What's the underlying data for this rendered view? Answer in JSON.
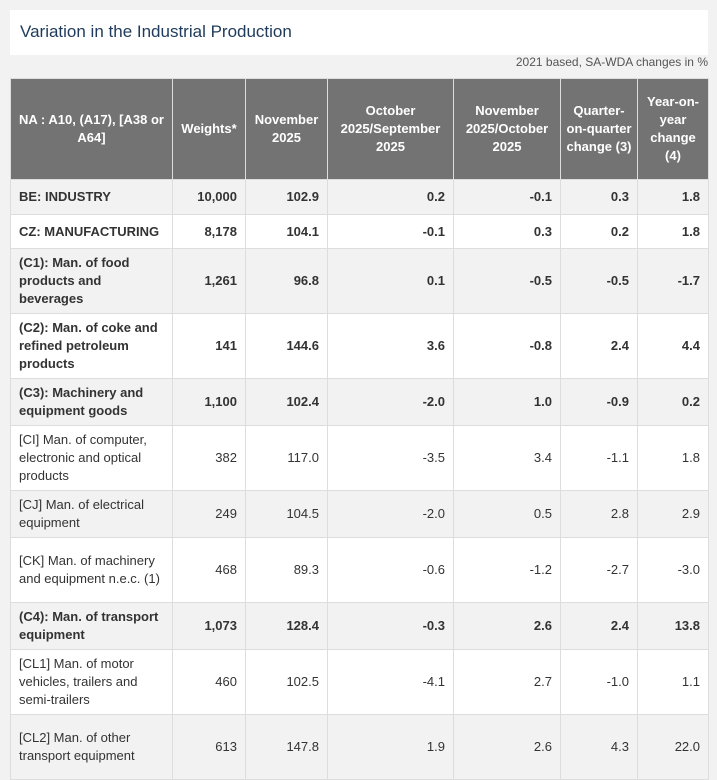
{
  "title": "Variation in the Industrial Production",
  "note": "2021 based, SA-WDA changes in %",
  "headers": [
    "NA : A10, (A17), [A38 or A64]",
    "Weights*",
    "November 2025",
    "October 2025/September 2025",
    "November 2025/October 2025",
    "Quarter-on-quarter change (3)",
    "Year-on-year change (4)"
  ],
  "rows": [
    {
      "cells": [
        "BE: INDUSTRY",
        "10,000",
        "102.9",
        "0.2",
        "-0.1",
        "0.3",
        "1.8"
      ],
      "bold": true
    },
    {
      "cells": [
        "CZ: MANUFACTURING",
        "8,178",
        "104.1",
        "-0.1",
        "0.3",
        "0.2",
        "1.8"
      ],
      "bold": true
    },
    {
      "cells": [
        "(C1): Man. of food products and beverages",
        "1,261",
        "96.8",
        "0.1",
        "-0.5",
        "-0.5",
        "-1.7"
      ],
      "bold": true
    },
    {
      "cells": [
        "(C2): Man. of coke and refined petroleum products",
        "141",
        "144.6",
        "3.6",
        "-0.8",
        "2.4",
        "4.4"
      ],
      "bold": true
    },
    {
      "cells": [
        "(C3): Machinery and equipment goods",
        "1,100",
        "102.4",
        "-2.0",
        "1.0",
        "-0.9",
        "0.2"
      ],
      "bold": true
    },
    {
      "cells": [
        "[CI] Man. of computer, electronic and optical products",
        "382",
        "117.0",
        "-3.5",
        "3.4",
        "-1.1",
        "1.8"
      ],
      "bold": false
    },
    {
      "cells": [
        "[CJ] Man. of electrical equipment",
        "249",
        "104.5",
        "-2.0",
        "0.5",
        "2.8",
        "2.9"
      ],
      "bold": false
    },
    {
      "cells": [
        "[CK] Man. of machinery and equipment n.e.c. (1)",
        "468",
        "89.3",
        "-0.6",
        "-1.2",
        "-2.7",
        "-3.0"
      ],
      "bold": false
    },
    {
      "cells": [
        "(C4): Man. of transport equipment",
        "1,073",
        "128.4",
        "-0.3",
        "2.6",
        "2.4",
        "13.8"
      ],
      "bold": true
    },
    {
      "cells": [
        "[CL1] Man. of motor vehicles, trailers and semi-trailers",
        "460",
        "102.5",
        "-4.1",
        "2.7",
        "-1.0",
        "1.1"
      ],
      "bold": false
    },
    {
      "cells": [
        "[CL2] Man. of other transport equipment",
        "613",
        "147.8",
        "1.9",
        "2.6",
        "4.3",
        "22.0"
      ],
      "bold": false
    }
  ]
}
